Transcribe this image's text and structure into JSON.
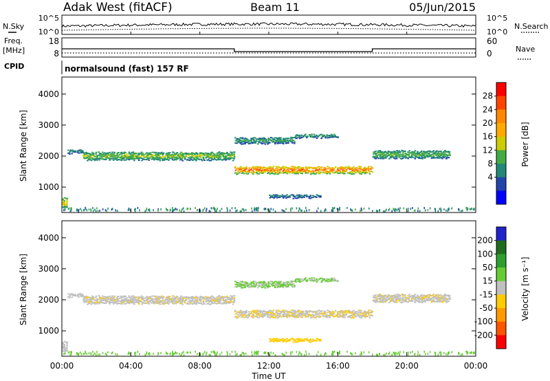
{
  "header": {
    "station": "Adak West (fitACF)",
    "beam": "Beam 11",
    "date": "05/Jun/2015"
  },
  "top_panels": {
    "nsky_label": "N.Sky",
    "nsearch_label": "N.Search",
    "noise_ticks_left": [
      "10^5",
      "10^0"
    ],
    "noise_ticks_right": [
      "10^5",
      "10^0"
    ],
    "freq_label_line1": "Freq.",
    "freq_label_line2": "[MHz]",
    "freq_ticks": [
      "18",
      "8"
    ],
    "nave_label": "Nave",
    "nave_ticks": [
      "60",
      "0"
    ],
    "cpid_label": "CPID",
    "cpid_text": "normalsound (fast) 157 RF"
  },
  "panels": {
    "y_label": "Slant Range [km]",
    "y_ticks": [
      "4000",
      "3000",
      "2000",
      "1000"
    ],
    "x_ticks": [
      "00:00",
      "04:00",
      "08:00",
      "12:00",
      "16:00",
      "20:00",
      "00:00"
    ],
    "x_label": "Time UT"
  },
  "power_scale": {
    "label": "Power [dB]",
    "ticks": [
      "28",
      "24",
      "20",
      "16",
      "12",
      "8",
      "4"
    ],
    "colors": [
      "#ff0000",
      "#ff4400",
      "#ff8800",
      "#ffaa00",
      "#cccc00",
      "#44aa44",
      "#228877",
      "#2244aa",
      "#0000ff"
    ]
  },
  "velocity_scale": {
    "label": "Velocity [m s⁻¹]",
    "ticks": [
      "200",
      "100",
      "50",
      "15",
      "-15",
      "-50",
      "-100",
      "-200"
    ],
    "colors": [
      "#2222cc",
      "#1f6b1f",
      "#2e9e2e",
      "#66cc33",
      "#c0c0c0",
      "#ffcc00",
      "#ff9900",
      "#ff5500",
      "#ff0000"
    ]
  },
  "chart_data": {
    "type": "heatmap",
    "x_range_hours": [
      0,
      24
    ],
    "y_range_km": [
      180,
      4550
    ],
    "frequency_mhz": [
      {
        "from_h": 0,
        "to_h": 10,
        "value": 12
      },
      {
        "from_h": 10,
        "to_h": 18,
        "value": 10
      },
      {
        "from_h": 18,
        "to_h": 24,
        "value": 12
      }
    ],
    "echo_bands": [
      {
        "from_h": 0.3,
        "to_h": 1.2,
        "center_km": 2150,
        "width_km": 120,
        "power_db": 8,
        "velocity": 0
      },
      {
        "from_h": 1.2,
        "to_h": 10.0,
        "center_km": 2000,
        "width_km": 250,
        "power_db": 14,
        "velocity": -5
      },
      {
        "from_h": 10.0,
        "to_h": 18.0,
        "center_km": 1550,
        "width_km": 220,
        "power_db": 24,
        "velocity": -10
      },
      {
        "from_h": 10.0,
        "to_h": 13.5,
        "center_km": 2500,
        "width_km": 200,
        "power_db": 10,
        "velocity": 20
      },
      {
        "from_h": 13.5,
        "to_h": 16.0,
        "center_km": 2650,
        "width_km": 120,
        "power_db": 10,
        "velocity": 20
      },
      {
        "from_h": 18.0,
        "to_h": 22.5,
        "center_km": 2050,
        "width_km": 250,
        "power_db": 12,
        "velocity": -5
      },
      {
        "from_h": 0.0,
        "to_h": 0.3,
        "center_km": 500,
        "width_km": 300,
        "power_db": 18,
        "velocity": 0
      },
      {
        "from_h": 12.0,
        "to_h": 15.0,
        "center_km": 700,
        "width_km": 90,
        "power_db": 8,
        "velocity": -30
      }
    ]
  }
}
